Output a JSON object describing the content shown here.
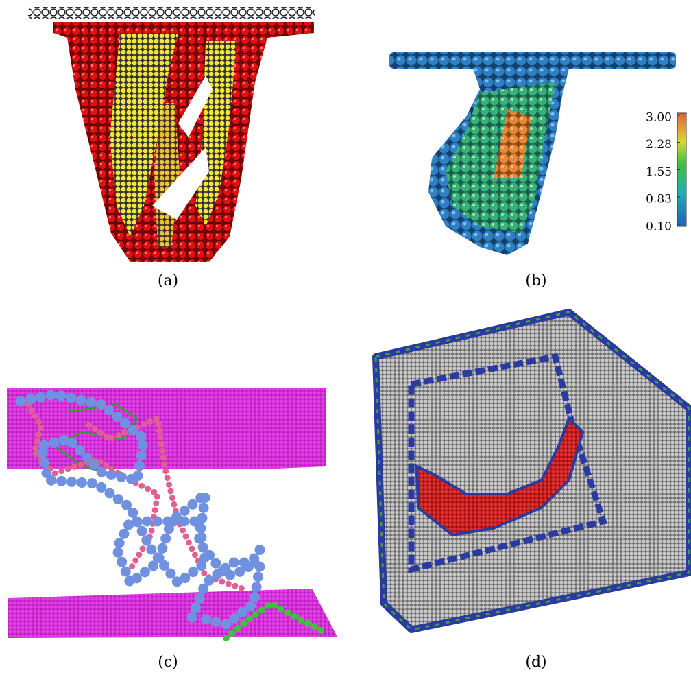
{
  "panels": [
    {
      "label": "(a)"
    },
    {
      "label": "(b)",
      "colorbar": {
        "clim": [
          0.1,
          3.0
        ],
        "ticks": [
          {
            "value": 3,
            "label": "3.00"
          },
          {
            "value": 2.28,
            "label": "2.28"
          },
          {
            "value": 1.55,
            "label": "1.55"
          },
          {
            "value": 0.83,
            "label": "0.83"
          },
          {
            "value": 0.1,
            "label": "0.10"
          }
        ]
      }
    },
    {
      "label": "(c)"
    },
    {
      "label": "(d)"
    }
  ]
}
